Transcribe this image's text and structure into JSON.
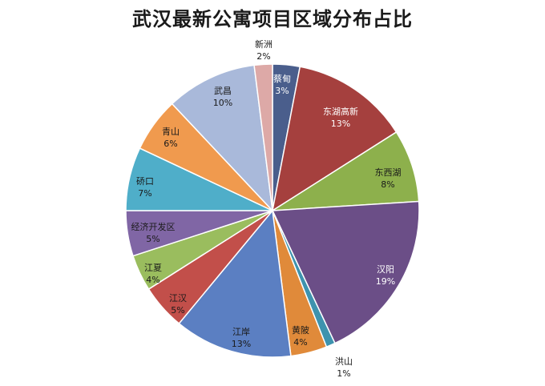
{
  "chart_data": {
    "type": "pie",
    "title": "武汉最新公寓项目区域分布占比",
    "slices": [
      {
        "name": "蔡甸",
        "value": 3,
        "label": "3%",
        "color": "#4A5E8C"
      },
      {
        "name": "东湖高新",
        "value": 13,
        "label": "13%",
        "color": "#A5403E"
      },
      {
        "name": "东西湖",
        "value": 8,
        "label": "8%",
        "color": "#8DB04C"
      },
      {
        "name": "汉阳",
        "value": 19,
        "label": "19%",
        "color": "#6B4E87"
      },
      {
        "name": "洪山",
        "value": 1,
        "label": "1%",
        "color": "#3E93AE"
      },
      {
        "name": "黄陂",
        "value": 4,
        "label": "4%",
        "color": "#E08A3A"
      },
      {
        "name": "江岸",
        "value": 13,
        "label": "13%",
        "color": "#5B7FC2"
      },
      {
        "name": "江汉",
        "value": 5,
        "label": "5%",
        "color": "#C24F4A"
      },
      {
        "name": "江夏",
        "value": 4,
        "label": "4%",
        "color": "#9ABD5E"
      },
      {
        "name": "经济开发区",
        "value": 5,
        "label": "5%",
        "color": "#8066A5"
      },
      {
        "name": "硚口",
        "value": 7,
        "label": "7%",
        "color": "#4FAEC9"
      },
      {
        "name": "青山",
        "value": 6,
        "label": "6%",
        "color": "#F09A4E"
      },
      {
        "name": "武昌",
        "value": 10,
        "label": "10%",
        "color": "#A9B9DA"
      },
      {
        "name": "新洲",
        "value": 2,
        "label": "2%",
        "color": "#DDA9A7"
      }
    ]
  }
}
